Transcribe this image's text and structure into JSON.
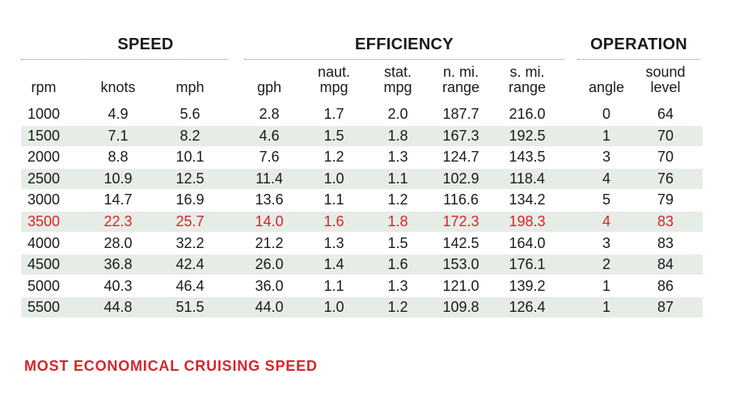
{
  "groups": {
    "speed": "SPEED",
    "efficiency": "EFFICIENCY",
    "operation": "OPERATION"
  },
  "headers": {
    "rpm": [
      "rpm"
    ],
    "knots": [
      "knots"
    ],
    "mph": [
      "mph"
    ],
    "gph": [
      "gph"
    ],
    "naut_mpg": [
      "naut.",
      "mpg"
    ],
    "stat_mpg": [
      "stat.",
      "mpg"
    ],
    "n_mi_range": [
      "n. mi.",
      "range"
    ],
    "s_mi_range": [
      "s. mi.",
      "range"
    ],
    "angle": [
      "angle"
    ],
    "sound_level": [
      "sound",
      "level"
    ]
  },
  "chart_data": {
    "type": "table",
    "columns": [
      "rpm",
      "knots",
      "mph",
      "gph",
      "naut. mpg",
      "stat. mpg",
      "n. mi. range",
      "s. mi. range",
      "angle",
      "sound level"
    ],
    "rows": [
      [
        "1000",
        "4.9",
        "5.6",
        "2.8",
        "1.7",
        "2.0",
        "187.7",
        "216.0",
        "0",
        "64"
      ],
      [
        "1500",
        "7.1",
        "8.2",
        "4.6",
        "1.5",
        "1.8",
        "167.3",
        "192.5",
        "1",
        "70"
      ],
      [
        "2000",
        "8.8",
        "10.1",
        "7.6",
        "1.2",
        "1.3",
        "124.7",
        "143.5",
        "3",
        "70"
      ],
      [
        "2500",
        "10.9",
        "12.5",
        "11.4",
        "1.0",
        "1.1",
        "102.9",
        "118.4",
        "4",
        "76"
      ],
      [
        "3000",
        "14.7",
        "16.9",
        "13.6",
        "1.1",
        "1.2",
        "116.6",
        "134.2",
        "5",
        "79"
      ],
      [
        "3500",
        "22.3",
        "25.7",
        "14.0",
        "1.6",
        "1.8",
        "172.3",
        "198.3",
        "4",
        "83"
      ],
      [
        "4000",
        "28.0",
        "32.2",
        "21.2",
        "1.3",
        "1.5",
        "142.5",
        "164.0",
        "3",
        "83"
      ],
      [
        "4500",
        "36.8",
        "42.4",
        "26.0",
        "1.4",
        "1.6",
        "153.0",
        "176.1",
        "2",
        "84"
      ],
      [
        "5000",
        "40.3",
        "46.4",
        "36.0",
        "1.1",
        "1.3",
        "121.0",
        "139.2",
        "1",
        "86"
      ],
      [
        "5500",
        "44.8",
        "51.5",
        "44.0",
        "1.0",
        "1.2",
        "109.8",
        "126.4",
        "1",
        "87"
      ]
    ],
    "highlight_rpm": "3500"
  },
  "footnote": "MOST ECONOMICAL CRUISING SPEED",
  "colors": {
    "highlight": "#d5252b",
    "row_shade": "#e6ece6",
    "text": "#1a1a1a"
  }
}
